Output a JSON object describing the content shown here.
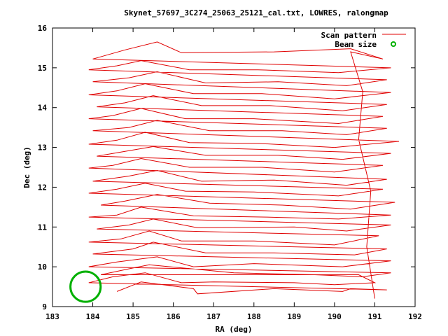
{
  "chart_data": {
    "type": "line",
    "title": "Skynet_57697_3C274_25063_25121_cal.txt, LOWRES, ralongmap",
    "xlabel": "RA (deg)",
    "ylabel": "Dec (deg)",
    "xlim": [
      183,
      192
    ],
    "ylim": [
      9,
      16
    ],
    "xticks": [
      "183",
      "184",
      "185",
      "186",
      "187",
      "188",
      "189",
      "190",
      "191",
      "192"
    ],
    "yticks": [
      "9",
      "10",
      "11",
      "12",
      "13",
      "14",
      "15",
      "16"
    ],
    "grid": false,
    "legend_position": "top-right",
    "scan_color": "#e00000",
    "beam_color": "#00b000",
    "series": [
      {
        "name": "Scan pattern",
        "points": [
          [
            184.6,
            9.38
          ],
          [
            185.2,
            9.62
          ],
          [
            186.5,
            9.45
          ],
          [
            186.6,
            9.32
          ],
          [
            188.5,
            9.45
          ],
          [
            190.2,
            9.38
          ],
          [
            190.4,
            9.45
          ],
          [
            191.3,
            9.42
          ],
          [
            183.9,
            9.6
          ],
          [
            184.5,
            9.75
          ],
          [
            185.3,
            9.85
          ],
          [
            186.2,
            9.6
          ],
          [
            187.0,
            9.62
          ],
          [
            189.0,
            9.6
          ],
          [
            190.0,
            9.55
          ],
          [
            191.0,
            9.6
          ],
          [
            190.6,
            9.8
          ],
          [
            184.2,
            9.8
          ],
          [
            184.9,
            9.95
          ],
          [
            185.4,
            10.05
          ],
          [
            187.5,
            9.85
          ],
          [
            189.5,
            9.8
          ],
          [
            190.7,
            9.75
          ],
          [
            191.4,
            9.85
          ],
          [
            183.9,
            10.0
          ],
          [
            184.6,
            10.12
          ],
          [
            185.6,
            10.25
          ],
          [
            186.5,
            10.0
          ],
          [
            188.0,
            10.08
          ],
          [
            190.2,
            10.0
          ],
          [
            191.4,
            10.15
          ],
          [
            184.0,
            10.32
          ],
          [
            185.0,
            10.45
          ],
          [
            185.5,
            10.62
          ],
          [
            186.8,
            10.35
          ],
          [
            188.5,
            10.35
          ],
          [
            190.5,
            10.3
          ],
          [
            191.3,
            10.45
          ],
          [
            183.9,
            10.62
          ],
          [
            184.7,
            10.7
          ],
          [
            185.4,
            10.9
          ],
          [
            186.2,
            10.65
          ],
          [
            188.0,
            10.65
          ],
          [
            190.0,
            10.55
          ],
          [
            191.1,
            10.78
          ],
          [
            184.1,
            10.95
          ],
          [
            184.9,
            11.05
          ],
          [
            185.5,
            11.2
          ],
          [
            186.6,
            10.98
          ],
          [
            189.0,
            11.0
          ],
          [
            190.3,
            10.9
          ],
          [
            191.4,
            11.05
          ],
          [
            183.9,
            11.25
          ],
          [
            184.6,
            11.3
          ],
          [
            185.2,
            11.5
          ],
          [
            186.5,
            11.28
          ],
          [
            188.3,
            11.25
          ],
          [
            190.1,
            11.2
          ],
          [
            191.4,
            11.3
          ],
          [
            184.2,
            11.55
          ],
          [
            184.8,
            11.65
          ],
          [
            185.6,
            11.82
          ],
          [
            186.9,
            11.6
          ],
          [
            188.7,
            11.55
          ],
          [
            190.4,
            11.45
          ],
          [
            191.5,
            11.62
          ],
          [
            183.9,
            11.85
          ],
          [
            184.6,
            11.95
          ],
          [
            185.3,
            12.1
          ],
          [
            186.3,
            11.9
          ],
          [
            188.0,
            11.88
          ],
          [
            190.1,
            11.78
          ],
          [
            191.2,
            11.95
          ],
          [
            184.0,
            12.15
          ],
          [
            184.9,
            12.28
          ],
          [
            185.6,
            12.42
          ],
          [
            186.7,
            12.15
          ],
          [
            188.5,
            12.18
          ],
          [
            190.3,
            12.05
          ],
          [
            191.3,
            12.2
          ],
          [
            183.9,
            12.48
          ],
          [
            184.5,
            12.55
          ],
          [
            185.2,
            12.72
          ],
          [
            186.4,
            12.5
          ],
          [
            188.2,
            12.5
          ],
          [
            190.0,
            12.38
          ],
          [
            191.2,
            12.55
          ],
          [
            184.1,
            12.78
          ],
          [
            184.8,
            12.9
          ],
          [
            185.5,
            13.02
          ],
          [
            186.8,
            12.8
          ],
          [
            188.6,
            12.8
          ],
          [
            190.2,
            12.7
          ],
          [
            191.4,
            12.85
          ],
          [
            183.9,
            13.08
          ],
          [
            184.6,
            13.18
          ],
          [
            185.3,
            13.38
          ],
          [
            186.4,
            13.12
          ],
          [
            188.1,
            13.1
          ],
          [
            190.0,
            13.0
          ],
          [
            191.6,
            13.15
          ],
          [
            184.0,
            13.42
          ],
          [
            184.9,
            13.5
          ],
          [
            185.6,
            13.68
          ],
          [
            186.9,
            13.42
          ],
          [
            188.7,
            13.42
          ],
          [
            190.3,
            13.32
          ],
          [
            191.3,
            13.48
          ],
          [
            183.9,
            13.72
          ],
          [
            184.5,
            13.8
          ],
          [
            185.2,
            13.98
          ],
          [
            186.3,
            13.72
          ],
          [
            188.0,
            13.72
          ],
          [
            190.1,
            13.6
          ],
          [
            191.2,
            13.78
          ],
          [
            184.1,
            14.02
          ],
          [
            184.8,
            14.12
          ],
          [
            185.5,
            14.3
          ],
          [
            186.7,
            14.05
          ],
          [
            188.4,
            14.05
          ],
          [
            190.2,
            13.92
          ],
          [
            191.3,
            14.08
          ],
          [
            183.9,
            14.32
          ],
          [
            184.6,
            14.42
          ],
          [
            185.3,
            14.6
          ],
          [
            186.5,
            14.35
          ],
          [
            188.2,
            14.35
          ],
          [
            190.0,
            14.22
          ],
          [
            191.4,
            14.38
          ],
          [
            184.0,
            14.65
          ],
          [
            184.9,
            14.75
          ],
          [
            185.6,
            14.9
          ],
          [
            186.8,
            14.62
          ],
          [
            188.6,
            14.65
          ],
          [
            190.3,
            14.55
          ],
          [
            191.3,
            14.7
          ],
          [
            183.9,
            14.95
          ],
          [
            184.6,
            15.05
          ],
          [
            185.2,
            15.18
          ],
          [
            186.4,
            14.95
          ],
          [
            188.1,
            14.95
          ],
          [
            190.1,
            14.88
          ],
          [
            191.4,
            15.0
          ],
          [
            184.0,
            15.22
          ],
          [
            184.8,
            15.45
          ],
          [
            185.6,
            15.65
          ],
          [
            186.2,
            15.38
          ],
          [
            188.5,
            15.4
          ],
          [
            190.4,
            15.48
          ],
          [
            191.2,
            15.22
          ],
          [
            190.4,
            15.4
          ],
          [
            190.7,
            14.4
          ],
          [
            190.6,
            13.2
          ],
          [
            190.9,
            11.9
          ],
          [
            190.8,
            10.5
          ],
          [
            191.0,
            9.2
          ]
        ]
      }
    ],
    "beams": [
      {
        "name": "Beam size",
        "ra": 183.82,
        "dec": 9.5,
        "diameter_deg": 0.75
      }
    ]
  }
}
